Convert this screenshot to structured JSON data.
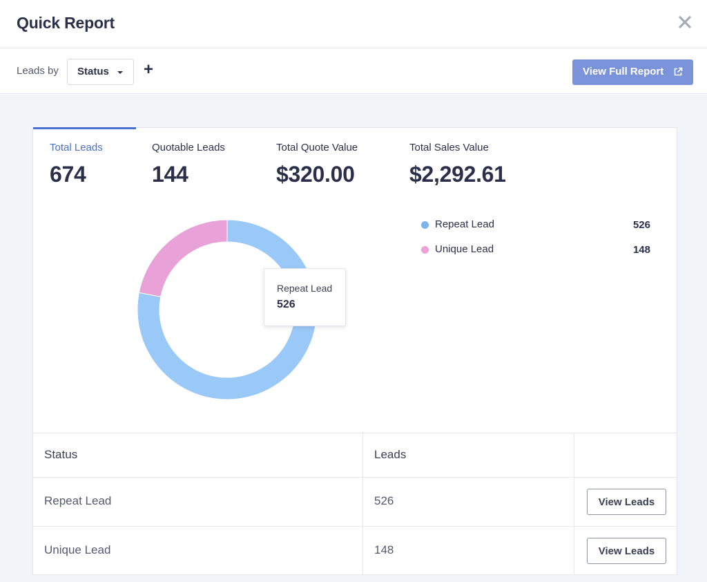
{
  "header": {
    "title": "Quick Report"
  },
  "toolbar": {
    "leads_by_label": "Leads by",
    "group_select_value": "Status",
    "add_label": "+",
    "view_full_report_label": "View Full Report"
  },
  "stats": [
    {
      "label": "Total Leads",
      "value": "674",
      "active": true
    },
    {
      "label": "Quotable Leads",
      "value": "144",
      "active": false
    },
    {
      "label": "Total Quote Value",
      "value": "$320.00",
      "active": false
    },
    {
      "label": "Total Sales Value",
      "value": "$2,292.61",
      "active": false
    }
  ],
  "chart_data": {
    "type": "pie",
    "variant": "donut",
    "categories": [
      "Repeat Lead",
      "Unique Lead"
    ],
    "values": [
      526,
      148
    ],
    "colors": [
      "#9ac8f7",
      "#e8a2d8"
    ],
    "legend": "right"
  },
  "tooltip": {
    "label": "Repeat Lead",
    "value": "526"
  },
  "legend": [
    {
      "name": "Repeat Lead",
      "value": "526",
      "color": "#7fb1ec"
    },
    {
      "name": "Unique Lead",
      "value": "148",
      "color": "#e8a2d8"
    }
  ],
  "table": {
    "columns": [
      "Status",
      "Leads"
    ],
    "rows": [
      {
        "status": "Repeat Lead",
        "leads": "526",
        "action": "View Leads"
      },
      {
        "status": "Unique Lead",
        "leads": "148",
        "action": "View Leads"
      }
    ]
  },
  "colors": {
    "accent": "#4a6fd0",
    "button_bg": "#7b93db",
    "page_bg": "#f1f4f9"
  },
  "icons": {
    "close": "close-icon",
    "external_link": "external-link-icon",
    "dropdown": "chevron-down-icon"
  }
}
